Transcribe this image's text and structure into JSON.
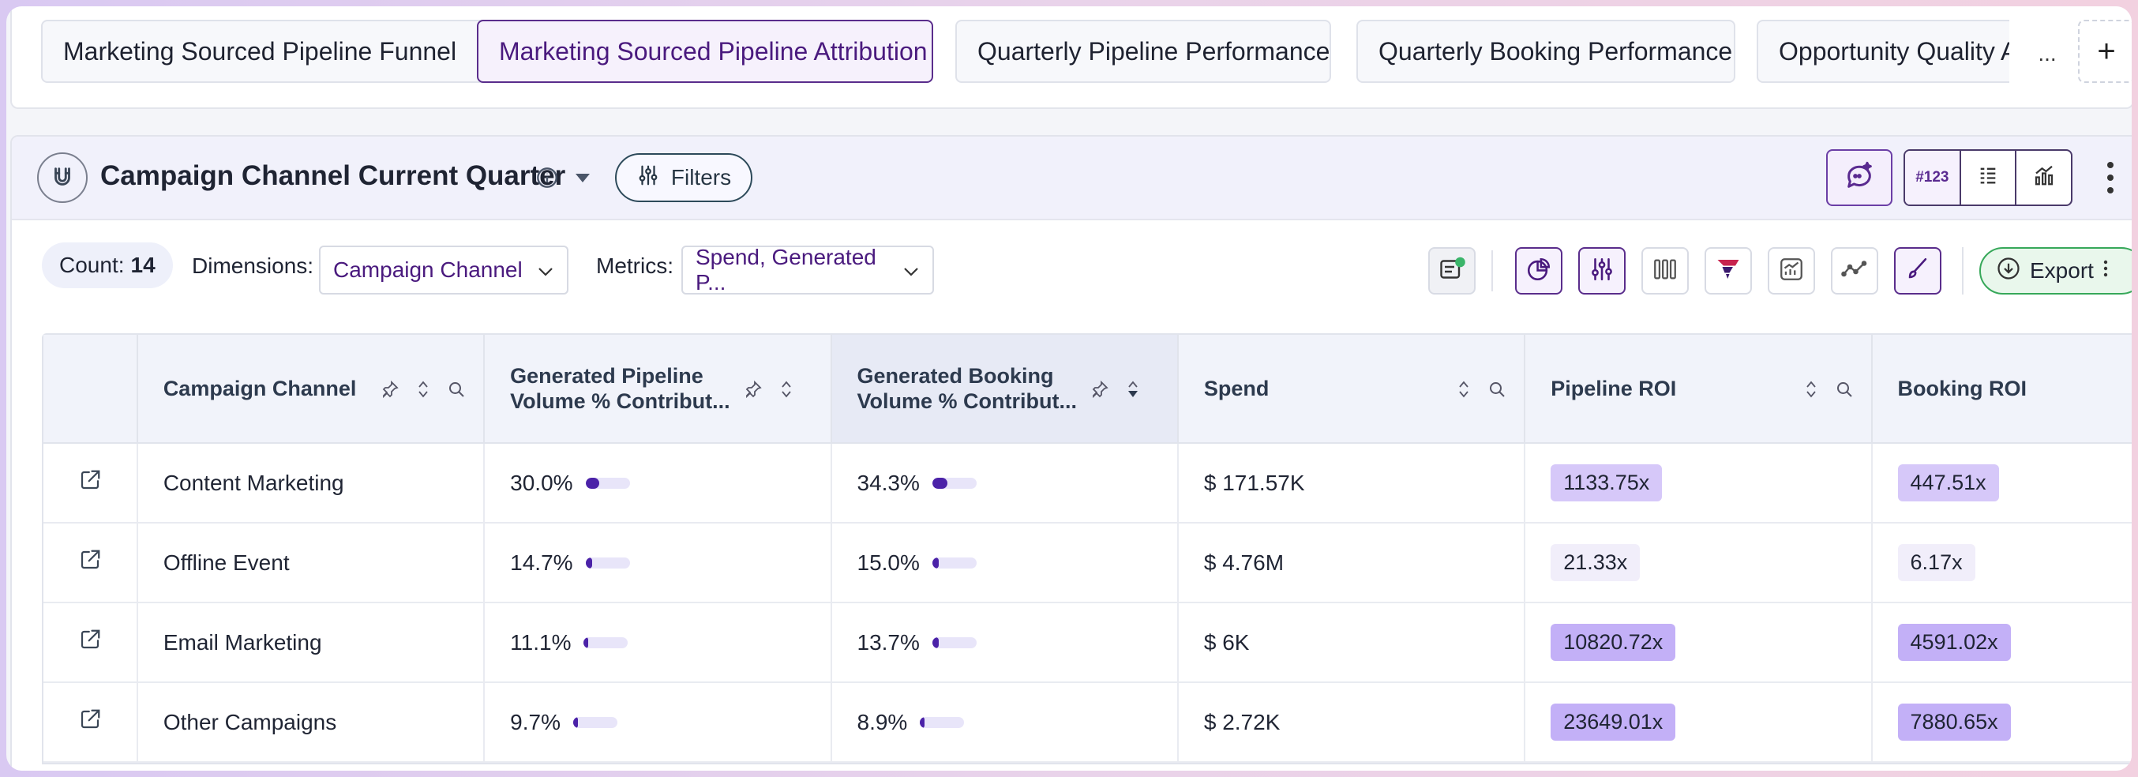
{
  "tabs": [
    {
      "label": "Marketing Sourced Pipeline Funnel",
      "active": false
    },
    {
      "label": "Marketing Sourced Pipeline Attribution",
      "active": true
    },
    {
      "label": "Quarterly Pipeline Performance",
      "active": false
    },
    {
      "label": "Quarterly Booking Performance",
      "active": false
    },
    {
      "label": "Opportunity Quality A",
      "active": false
    }
  ],
  "tab_more": "...",
  "tab_add": "+",
  "panel": {
    "title": "Campaign Channel Current Quarter",
    "filters_label": "Filters",
    "view_number_label": "#123"
  },
  "toolbar": {
    "count_label": "Count:",
    "count_value": "14",
    "dimensions_label": "Dimensions:",
    "dimensions_value": "Campaign Channel",
    "metrics_label": "Metrics:",
    "metrics_value": "Spend, Generated P...",
    "export_label": "Export"
  },
  "table": {
    "headers": [
      "Campaign Channel",
      "Generated Pipeline Volume % Contribut...",
      "Generated Booking Volume % Contribut...",
      "Spend",
      "Pipeline ROI",
      "Booking ROI"
    ],
    "rows": [
      {
        "channel": "Content Marketing",
        "pipeline_pct": "30.0%",
        "pipeline_frac": 0.3,
        "booking_pct": "34.3%",
        "booking_frac": 0.343,
        "spend": "$ 171.57K",
        "pipeline_roi": "1133.75x",
        "booking_roi": "447.51x",
        "roi_level": "mid"
      },
      {
        "channel": "Offline Event",
        "pipeline_pct": "14.7%",
        "pipeline_frac": 0.147,
        "booking_pct": "15.0%",
        "booking_frac": 0.15,
        "spend": "$ 4.76M",
        "pipeline_roi": "21.33x",
        "booking_roi": "6.17x",
        "roi_level": "lo"
      },
      {
        "channel": "Email Marketing",
        "pipeline_pct": "11.1%",
        "pipeline_frac": 0.111,
        "booking_pct": "13.7%",
        "booking_frac": 0.137,
        "spend": "$ 6K",
        "pipeline_roi": "10820.72x",
        "booking_roi": "4591.02x",
        "roi_level": "hi"
      },
      {
        "channel": "Other Campaigns",
        "pipeline_pct": "9.7%",
        "pipeline_frac": 0.097,
        "booking_pct": "8.9%",
        "booking_frac": 0.089,
        "spend": "$ 2.72K",
        "pipeline_roi": "23649.01x",
        "booking_roi": "7880.65x",
        "roi_level": "hi"
      }
    ]
  },
  "colors": {
    "accent": "#4a1a7e",
    "bar_fill": "#4b22a8",
    "roi_high": "#c3b0f7",
    "roi_mid": "#d6c8f9",
    "roi_low": "#f1eefa",
    "export_green": "#37a85a"
  }
}
